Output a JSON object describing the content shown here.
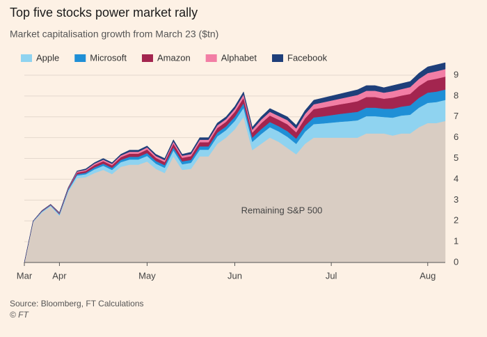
{
  "chart_data": {
    "type": "stacked_area",
    "title": "Top five stocks power market rally",
    "subtitle": "Market capitalisation growth from March 23 ($tn)",
    "source": "Source: Bloomberg, FT Calculations",
    "credit": "© FT",
    "categories": [
      "Mar",
      null,
      null,
      null,
      "Apr",
      null,
      null,
      null,
      null,
      null,
      null,
      null,
      null,
      null,
      "May",
      null,
      null,
      null,
      null,
      null,
      null,
      null,
      null,
      null,
      "Jun",
      null,
      null,
      null,
      null,
      null,
      null,
      null,
      null,
      null,
      null,
      "Jul",
      null,
      null,
      null,
      null,
      null,
      null,
      null,
      null,
      null,
      null,
      "Aug",
      null,
      null
    ],
    "series": [
      {
        "name": "Remaining S&P 500",
        "color": "#d9cdc3",
        "values": [
          0,
          1.95,
          2.4,
          2.7,
          2.25,
          3.4,
          4.05,
          4.1,
          4.3,
          4.45,
          4.25,
          4.6,
          4.7,
          4.7,
          4.85,
          4.5,
          4.3,
          5.1,
          4.45,
          4.5,
          5.1,
          5.1,
          5.7,
          6.0,
          6.4,
          7.0,
          5.4,
          5.7,
          6.0,
          5.8,
          5.5,
          5.2,
          5.7,
          6.0,
          6.0,
          6.0,
          6.0,
          6.0,
          6.0,
          6.2,
          6.2,
          6.2,
          6.1,
          6.2,
          6.2,
          6.5,
          6.7,
          6.7,
          6.8
        ]
      },
      {
        "name": "Apple",
        "color": "#8fd3f0",
        "values": [
          0,
          0.02,
          0.04,
          0.04,
          0.05,
          0.07,
          0.13,
          0.14,
          0.18,
          0.2,
          0.2,
          0.22,
          0.25,
          0.25,
          0.27,
          0.25,
          0.25,
          0.29,
          0.27,
          0.29,
          0.32,
          0.32,
          0.36,
          0.36,
          0.4,
          0.43,
          0.4,
          0.47,
          0.5,
          0.5,
          0.54,
          0.5,
          0.58,
          0.65,
          0.68,
          0.72,
          0.76,
          0.79,
          0.83,
          0.83,
          0.83,
          0.79,
          0.86,
          0.86,
          0.9,
          0.94,
          0.97,
          1.01,
          1.01
        ]
      },
      {
        "name": "Microsoft",
        "color": "#1f8fd6",
        "values": [
          0,
          0.01,
          0.02,
          0.02,
          0.03,
          0.04,
          0.06,
          0.07,
          0.09,
          0.1,
          0.1,
          0.11,
          0.13,
          0.13,
          0.14,
          0.13,
          0.13,
          0.14,
          0.14,
          0.14,
          0.16,
          0.16,
          0.18,
          0.18,
          0.2,
          0.22,
          0.2,
          0.23,
          0.25,
          0.25,
          0.27,
          0.25,
          0.29,
          0.32,
          0.34,
          0.36,
          0.38,
          0.4,
          0.41,
          0.41,
          0.41,
          0.4,
          0.43,
          0.43,
          0.45,
          0.47,
          0.49,
          0.5,
          0.5
        ]
      },
      {
        "name": "Amazon",
        "color": "#a3254f",
        "values": [
          0,
          0.01,
          0.02,
          0.02,
          0.03,
          0.04,
          0.08,
          0.09,
          0.11,
          0.12,
          0.12,
          0.13,
          0.15,
          0.15,
          0.17,
          0.15,
          0.15,
          0.18,
          0.17,
          0.18,
          0.2,
          0.2,
          0.22,
          0.22,
          0.24,
          0.26,
          0.24,
          0.29,
          0.31,
          0.31,
          0.33,
          0.31,
          0.35,
          0.4,
          0.42,
          0.44,
          0.46,
          0.48,
          0.51,
          0.51,
          0.51,
          0.48,
          0.53,
          0.53,
          0.55,
          0.57,
          0.59,
          0.62,
          0.62
        ]
      },
      {
        "name": "Alphabet",
        "color": "#f27ea5",
        "values": [
          0,
          0.01,
          0.01,
          0.01,
          0.02,
          0.03,
          0.05,
          0.05,
          0.07,
          0.07,
          0.07,
          0.08,
          0.09,
          0.09,
          0.1,
          0.09,
          0.09,
          0.1,
          0.1,
          0.1,
          0.12,
          0.12,
          0.13,
          0.13,
          0.14,
          0.16,
          0.14,
          0.17,
          0.18,
          0.18,
          0.2,
          0.18,
          0.21,
          0.23,
          0.25,
          0.26,
          0.27,
          0.29,
          0.3,
          0.3,
          0.3,
          0.29,
          0.31,
          0.31,
          0.33,
          0.34,
          0.35,
          0.36,
          0.36
        ]
      },
      {
        "name": "Facebook",
        "color": "#1e3f7a",
        "values": [
          0,
          0,
          0.01,
          0.01,
          0.02,
          0.02,
          0.03,
          0.05,
          0.05,
          0.06,
          0.06,
          0.06,
          0.08,
          0.08,
          0.07,
          0.08,
          0.08,
          0.09,
          0.07,
          0.09,
          0.1,
          0.1,
          0.11,
          0.11,
          0.12,
          0.13,
          0.12,
          0.14,
          0.16,
          0.16,
          0.16,
          0.16,
          0.17,
          0.2,
          0.21,
          0.22,
          0.23,
          0.24,
          0.25,
          0.25,
          0.25,
          0.24,
          0.27,
          0.27,
          0.27,
          0.28,
          0.3,
          0.31,
          0.31
        ]
      }
    ],
    "ylim": [
      0,
      9.6
    ],
    "yticks": [
      0,
      1,
      2,
      3,
      4,
      5,
      6,
      7,
      8,
      9
    ],
    "grid": true
  }
}
